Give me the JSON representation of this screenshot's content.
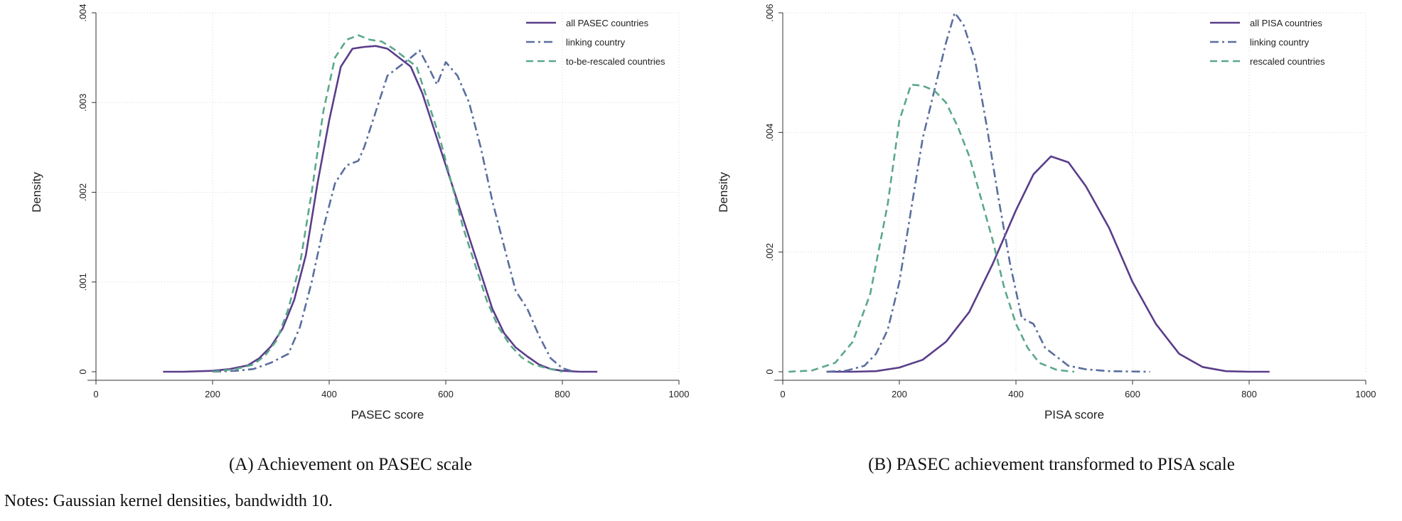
{
  "chart_data": [
    {
      "type": "line",
      "title": "",
      "xlabel": "PASEC score",
      "ylabel": "Density",
      "xlim": [
        0,
        1000
      ],
      "ylim": [
        0,
        0.004
      ],
      "x_ticks": [
        0,
        200,
        400,
        600,
        800,
        1000
      ],
      "x_tick_labels": [
        "0",
        "200",
        "400",
        "600",
        "800",
        "1000"
      ],
      "y_ticks": [
        0,
        0.001,
        0.002,
        0.003,
        0.004
      ],
      "y_tick_labels": [
        "0",
        ".001",
        ".002",
        ".003",
        ".004"
      ],
      "grid": true,
      "legend_position": "top-right",
      "caption": "(A) Achievement on PASEC scale",
      "series": [
        {
          "name": "all PASEC countries",
          "color": "#5a3d8a",
          "dash": "solid",
          "points": [
            [
              115,
              0
            ],
            [
              150,
              0
            ],
            [
              200,
              1e-05
            ],
            [
              230,
              3e-05
            ],
            [
              260,
              7e-05
            ],
            [
              280,
              0.00015
            ],
            [
              300,
              0.00028
            ],
            [
              320,
              0.00048
            ],
            [
              340,
              0.0008
            ],
            [
              360,
              0.0013
            ],
            [
              380,
              0.0021
            ],
            [
              400,
              0.0028
            ],
            [
              420,
              0.0034
            ],
            [
              440,
              0.0036
            ],
            [
              460,
              0.00362
            ],
            [
              480,
              0.00363
            ],
            [
              500,
              0.0036
            ],
            [
              520,
              0.0035
            ],
            [
              540,
              0.0034
            ],
            [
              560,
              0.0031
            ],
            [
              580,
              0.0027
            ],
            [
              600,
              0.0023
            ],
            [
              620,
              0.0019
            ],
            [
              640,
              0.0015
            ],
            [
              660,
              0.0011
            ],
            [
              680,
              0.0007
            ],
            [
              700,
              0.00043
            ],
            [
              720,
              0.00027
            ],
            [
              740,
              0.00017
            ],
            [
              760,
              8e-05
            ],
            [
              780,
              3e-05
            ],
            [
              800,
              1e-05
            ],
            [
              830,
              0
            ],
            [
              860,
              0
            ]
          ]
        },
        {
          "name": "linking country",
          "color": "#5a6e9e",
          "dash": "dashdot",
          "points": [
            [
              200,
              0
            ],
            [
              240,
              1e-05
            ],
            [
              270,
              3e-05
            ],
            [
              300,
              0.0001
            ],
            [
              330,
              0.0002
            ],
            [
              350,
              0.0005
            ],
            [
              370,
              0.001
            ],
            [
              390,
              0.0016
            ],
            [
              410,
              0.0021
            ],
            [
              430,
              0.0023
            ],
            [
              450,
              0.00235
            ],
            [
              460,
              0.0025
            ],
            [
              480,
              0.0029
            ],
            [
              500,
              0.0033
            ],
            [
              520,
              0.0034
            ],
            [
              540,
              0.0035
            ],
            [
              555,
              0.00358
            ],
            [
              570,
              0.0034
            ],
            [
              585,
              0.0032
            ],
            [
              600,
              0.00345
            ],
            [
              620,
              0.0033
            ],
            [
              640,
              0.003
            ],
            [
              660,
              0.0025
            ],
            [
              680,
              0.0019
            ],
            [
              700,
              0.0014
            ],
            [
              720,
              0.0009
            ],
            [
              740,
              0.0007
            ],
            [
              760,
              0.0004
            ],
            [
              780,
              0.00015
            ],
            [
              800,
              4e-05
            ],
            [
              820,
              0
            ]
          ]
        },
        {
          "name": "to-be-rescaled countries",
          "color": "#5aa88a",
          "dash": "dashed",
          "points": [
            [
              200,
              0
            ],
            [
              240,
              3e-05
            ],
            [
              270,
              8e-05
            ],
            [
              290,
              0.00018
            ],
            [
              310,
              0.00035
            ],
            [
              330,
              0.0007
            ],
            [
              350,
              0.0012
            ],
            [
              370,
              0.002
            ],
            [
              390,
              0.0029
            ],
            [
              410,
              0.0035
            ],
            [
              430,
              0.0037
            ],
            [
              450,
              0.00375
            ],
            [
              470,
              0.0037
            ],
            [
              490,
              0.00368
            ],
            [
              510,
              0.0036
            ],
            [
              530,
              0.0035
            ],
            [
              550,
              0.0034
            ],
            [
              570,
              0.003
            ],
            [
              590,
              0.0026
            ],
            [
              610,
              0.0021
            ],
            [
              630,
              0.0016
            ],
            [
              650,
              0.0012
            ],
            [
              670,
              0.0008
            ],
            [
              690,
              0.0005
            ],
            [
              710,
              0.0003
            ],
            [
              730,
              0.00016
            ],
            [
              750,
              8e-05
            ],
            [
              780,
              3e-05
            ],
            [
              800,
              0
            ]
          ]
        }
      ]
    },
    {
      "type": "line",
      "title": "",
      "xlabel": "PISA score",
      "ylabel": "Density",
      "xlim": [
        0,
        1000
      ],
      "ylim": [
        0,
        0.006
      ],
      "x_ticks": [
        0,
        200,
        400,
        600,
        800,
        1000
      ],
      "x_tick_labels": [
        "0",
        "200",
        "400",
        "600",
        "800",
        "1000"
      ],
      "y_ticks": [
        0,
        0.002,
        0.004,
        0.006
      ],
      "y_tick_labels": [
        "0",
        ".002",
        ".004",
        ".006"
      ],
      "grid": true,
      "legend_position": "top-right",
      "caption": "(B) PASEC achievement transformed to PISA scale",
      "series": [
        {
          "name": "all PISA countries",
          "color": "#5a3d8a",
          "dash": "solid",
          "points": [
            [
              75,
              0
            ],
            [
              120,
              0
            ],
            [
              160,
              1e-05
            ],
            [
              200,
              7e-05
            ],
            [
              240,
              0.0002
            ],
            [
              280,
              0.0005
            ],
            [
              320,
              0.001
            ],
            [
              360,
              0.0018
            ],
            [
              400,
              0.0027
            ],
            [
              430,
              0.0033
            ],
            [
              460,
              0.0036
            ],
            [
              490,
              0.0035
            ],
            [
              520,
              0.0031
            ],
            [
              560,
              0.0024
            ],
            [
              600,
              0.0015
            ],
            [
              640,
              0.0008
            ],
            [
              680,
              0.0003
            ],
            [
              720,
              8e-05
            ],
            [
              760,
              1e-05
            ],
            [
              800,
              0
            ],
            [
              835,
              0
            ]
          ]
        },
        {
          "name": "linking country",
          "color": "#5a6e9e",
          "dash": "dashdot",
          "points": [
            [
              75,
              0
            ],
            [
              110,
              2e-05
            ],
            [
              140,
              0.0001
            ],
            [
              160,
              0.0003
            ],
            [
              180,
              0.0007
            ],
            [
              200,
              0.0015
            ],
            [
              220,
              0.0027
            ],
            [
              240,
              0.0039
            ],
            [
              260,
              0.0047
            ],
            [
              280,
              0.0055
            ],
            [
              295,
              0.006
            ],
            [
              310,
              0.0058
            ],
            [
              330,
              0.0052
            ],
            [
              350,
              0.0041
            ],
            [
              370,
              0.0029
            ],
            [
              390,
              0.0018
            ],
            [
              410,
              0.0009
            ],
            [
              430,
              0.0008
            ],
            [
              450,
              0.0004
            ],
            [
              470,
              0.00025
            ],
            [
              490,
              0.0001
            ],
            [
              520,
              4e-05
            ],
            [
              560,
              1e-05
            ],
            [
              630,
              0
            ]
          ]
        },
        {
          "name": "rescaled countries",
          "color": "#5aa88a",
          "dash": "dashed",
          "points": [
            [
              10,
              0
            ],
            [
              50,
              2e-05
            ],
            [
              90,
              0.00015
            ],
            [
              120,
              0.0005
            ],
            [
              150,
              0.0013
            ],
            [
              180,
              0.0028
            ],
            [
              200,
              0.0042
            ],
            [
              220,
              0.0048
            ],
            [
              240,
              0.00478
            ],
            [
              260,
              0.0047
            ],
            [
              280,
              0.0045
            ],
            [
              300,
              0.0041
            ],
            [
              320,
              0.0036
            ],
            [
              340,
              0.0029
            ],
            [
              360,
              0.0022
            ],
            [
              380,
              0.0014
            ],
            [
              400,
              0.0008
            ],
            [
              420,
              0.0004
            ],
            [
              440,
              0.00015
            ],
            [
              470,
              3e-05
            ],
            [
              500,
              0
            ]
          ]
        }
      ]
    }
  ],
  "notes": "Notes: Gaussian kernel densities, bandwidth 10."
}
